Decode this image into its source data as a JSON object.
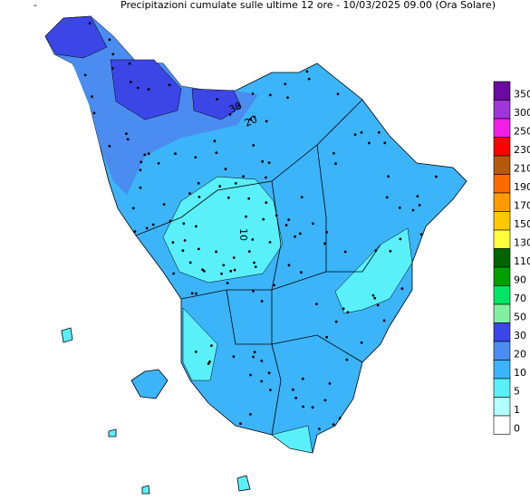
{
  "header": {
    "marker": "-",
    "title": "Precipitazioni cumulate sulle ultime 12 ore - 10/03/2025 09.00 (Ora Solare)"
  },
  "legend": [
    {
      "value": 350,
      "color": "#6a0aa0"
    },
    {
      "value": 300,
      "color": "#a035d8"
    },
    {
      "value": 250,
      "color": "#f01ee6"
    },
    {
      "value": 230,
      "color": "#ff0000"
    },
    {
      "value": 210,
      "color": "#b45a0a"
    },
    {
      "value": 190,
      "color": "#ff6a00"
    },
    {
      "value": 170,
      "color": "#ff9a00"
    },
    {
      "value": 150,
      "color": "#ffc800"
    },
    {
      "value": 130,
      "color": "#ffff3c"
    },
    {
      "value": 110,
      "color": "#006400"
    },
    {
      "value": 90,
      "color": "#00a000"
    },
    {
      "value": 70,
      "color": "#00e664"
    },
    {
      "value": 50,
      "color": "#82f0a0"
    },
    {
      "value": 30,
      "color": "#3c46e6"
    },
    {
      "value": 20,
      "color": "#4a8cf0"
    },
    {
      "value": 10,
      "color": "#3cb4fa"
    },
    {
      "value": 5,
      "color": "#5af0fa"
    },
    {
      "value": 1,
      "color": "#b4ffff"
    },
    {
      "value": 0,
      "color": "#ffffff"
    }
  ],
  "contour_labels": [
    "30",
    "20",
    "10"
  ]
}
